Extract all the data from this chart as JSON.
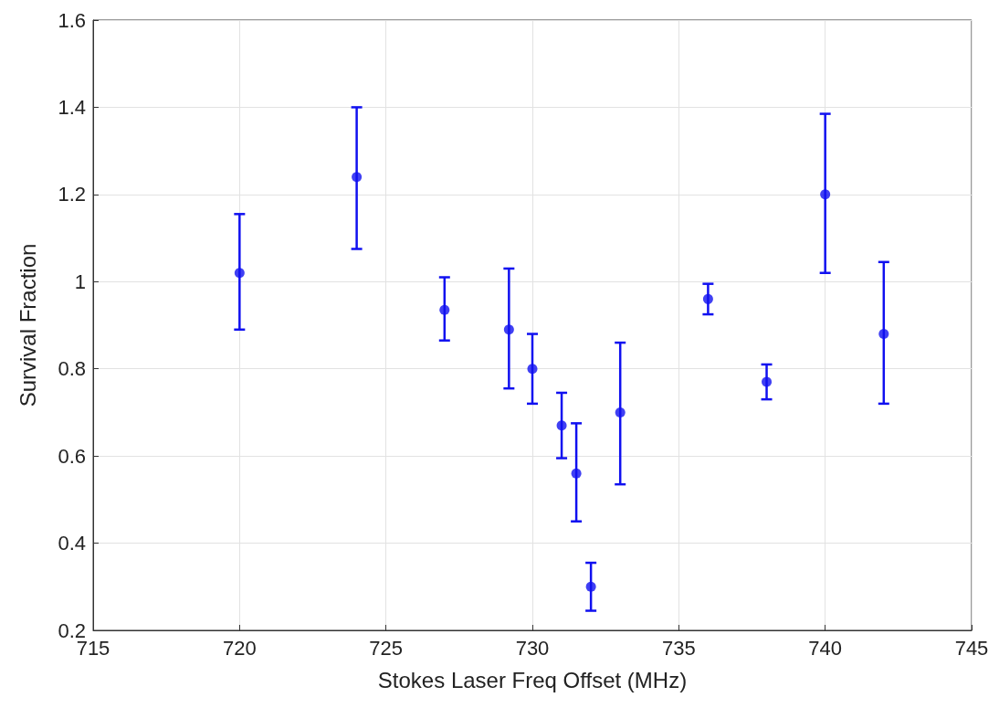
{
  "chart_data": {
    "type": "scatter",
    "xlabel": "Stokes Laser Freq Offset (MHz)",
    "ylabel": "Survival Fraction",
    "x": [
      720,
      724,
      727,
      729.2,
      730,
      731,
      731.5,
      732,
      733,
      736,
      738,
      740,
      742
    ],
    "series": [
      {
        "color": "#1010f0",
        "values": [
          1.02,
          1.24,
          0.935,
          0.89,
          0.8,
          0.67,
          0.56,
          0.3,
          0.7,
          0.96,
          0.77,
          1.2,
          0.88
        ],
        "errors": [
          [
            0.89,
            1.155
          ],
          [
            1.075,
            1.4
          ],
          [
            0.865,
            1.01
          ],
          [
            0.755,
            1.03
          ],
          [
            0.72,
            0.88
          ],
          [
            0.595,
            0.745
          ],
          [
            0.45,
            0.675
          ],
          [
            0.245,
            0.355
          ],
          [
            0.535,
            0.86
          ],
          [
            0.925,
            0.995
          ],
          [
            0.73,
            0.81
          ],
          [
            1.02,
            1.385
          ],
          [
            0.72,
            1.045
          ]
        ]
      }
    ],
    "xlim": [
      715,
      745
    ],
    "xticks": [
      715,
      720,
      725,
      730,
      735,
      740,
      745
    ],
    "ylim": [
      0.2,
      1.6
    ],
    "yticks": [
      0.2,
      0.4,
      0.6,
      0.8,
      1,
      1.2,
      1.4,
      1.6
    ],
    "grid": true,
    "marker": "circle"
  }
}
